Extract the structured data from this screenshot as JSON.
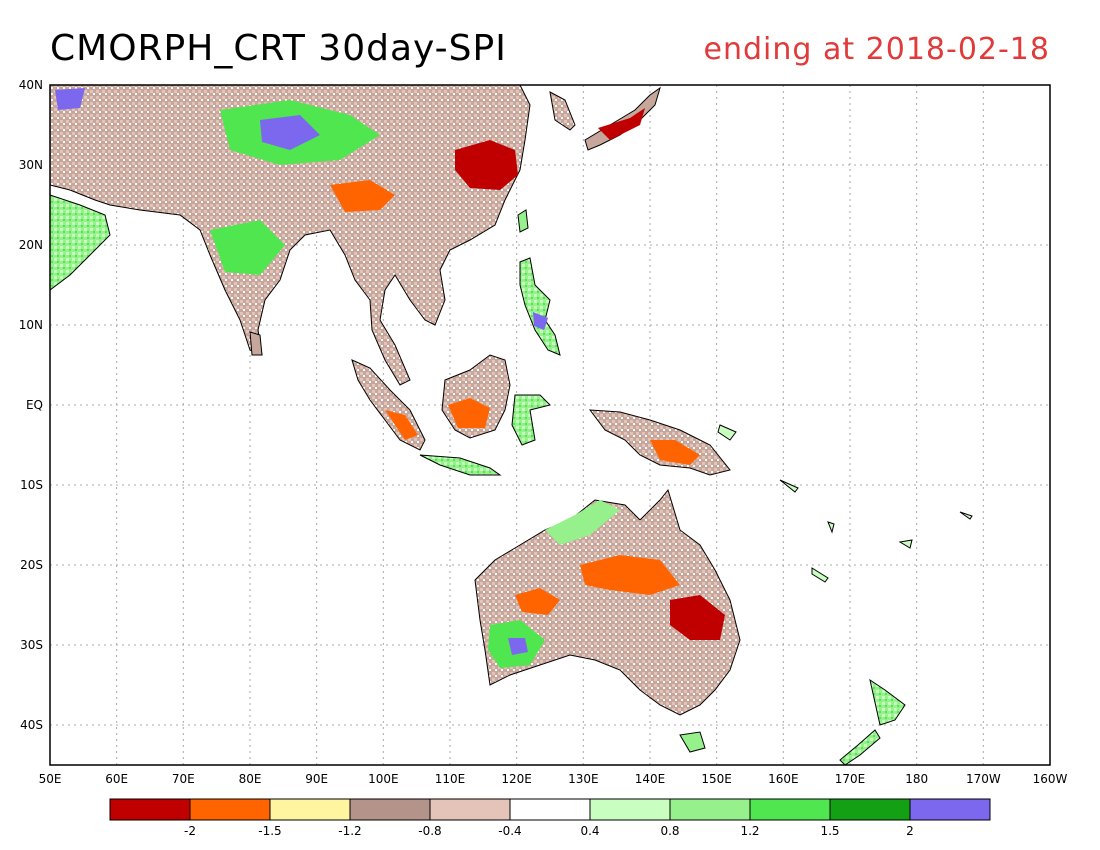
{
  "title": "CMORPH_CRT 30day-SPI",
  "subtitle": "ending at 2018-02-18",
  "axes": {
    "lat_labels": [
      "40N",
      "30N",
      "20N",
      "10N",
      "EQ",
      "10S",
      "20S",
      "30S",
      "40S"
    ],
    "lon_labels": [
      "50E",
      "60E",
      "70E",
      "80E",
      "90E",
      "100E",
      "110E",
      "120E",
      "130E",
      "140E",
      "150E",
      "160E",
      "170E",
      "180",
      "170W",
      "160W"
    ]
  },
  "legend": {
    "colors": [
      "#c00000",
      "#ff6400",
      "#fff5a0",
      "#b4938a",
      "#e4c3b8",
      "#ffffff",
      "#c8ffc0",
      "#96f08c",
      "#50e650",
      "#14a014",
      "#7b68ee"
    ],
    "labels": [
      "-2",
      "-1.5",
      "-1.2",
      "-0.8",
      "-0.4",
      "0.4",
      "0.8",
      "1.2",
      "1.5",
      "2"
    ]
  }
}
